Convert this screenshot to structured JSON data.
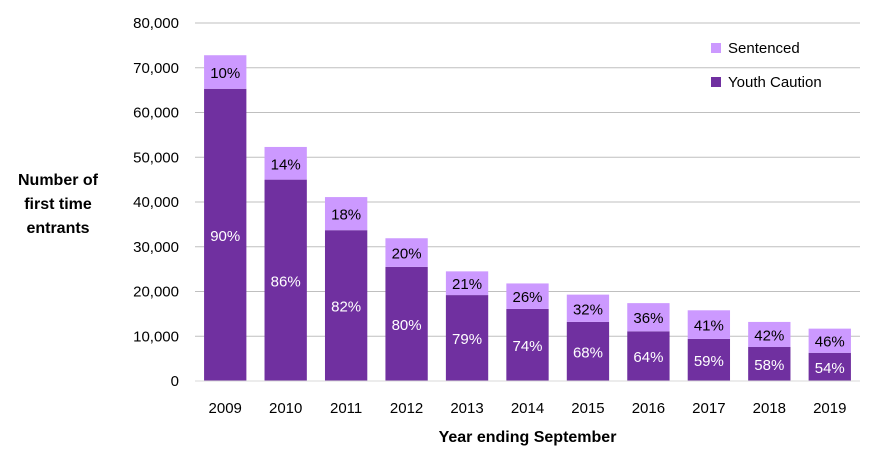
{
  "chart_data": {
    "type": "bar",
    "stacked": true,
    "categories": [
      "2009",
      "2010",
      "2011",
      "2012",
      "2013",
      "2014",
      "2015",
      "2016",
      "2017",
      "2018",
      "2019"
    ],
    "series": [
      {
        "name": "Youth Caution",
        "color": "#7030A0",
        "values": [
          65300,
          45000,
          33700,
          25500,
          19200,
          16100,
          13200,
          11100,
          9400,
          7600,
          6300
        ],
        "labels": [
          "90%",
          "86%",
          "82%",
          "80%",
          "79%",
          "74%",
          "68%",
          "64%",
          "59%",
          "58%",
          "54%"
        ]
      },
      {
        "name": "Sentenced",
        "color": "#CC99FF",
        "values": [
          7500,
          7300,
          7400,
          6400,
          5300,
          5700,
          6100,
          6300,
          6400,
          5600,
          5400
        ],
        "labels": [
          "10%",
          "14%",
          "18%",
          "20%",
          "21%",
          "26%",
          "32%",
          "36%",
          "41%",
          "42%",
          "46%"
        ]
      }
    ],
    "ylabel": "Number of first time entrants",
    "ylabel_lines": [
      "Number of",
      "first time",
      "entrants"
    ],
    "xlabel": "Year ending September",
    "ylim": [
      0,
      80000
    ],
    "yticks": [
      0,
      10000,
      20000,
      30000,
      40000,
      50000,
      60000,
      70000,
      80000
    ],
    "ytick_labels": [
      "0",
      "10,000",
      "20,000",
      "30,000",
      "40,000",
      "50,000",
      "60,000",
      "70,000",
      "80,000"
    ],
    "grid": true,
    "legend_position": "top-right",
    "legend_order": [
      "Sentenced",
      "Youth Caution"
    ]
  }
}
